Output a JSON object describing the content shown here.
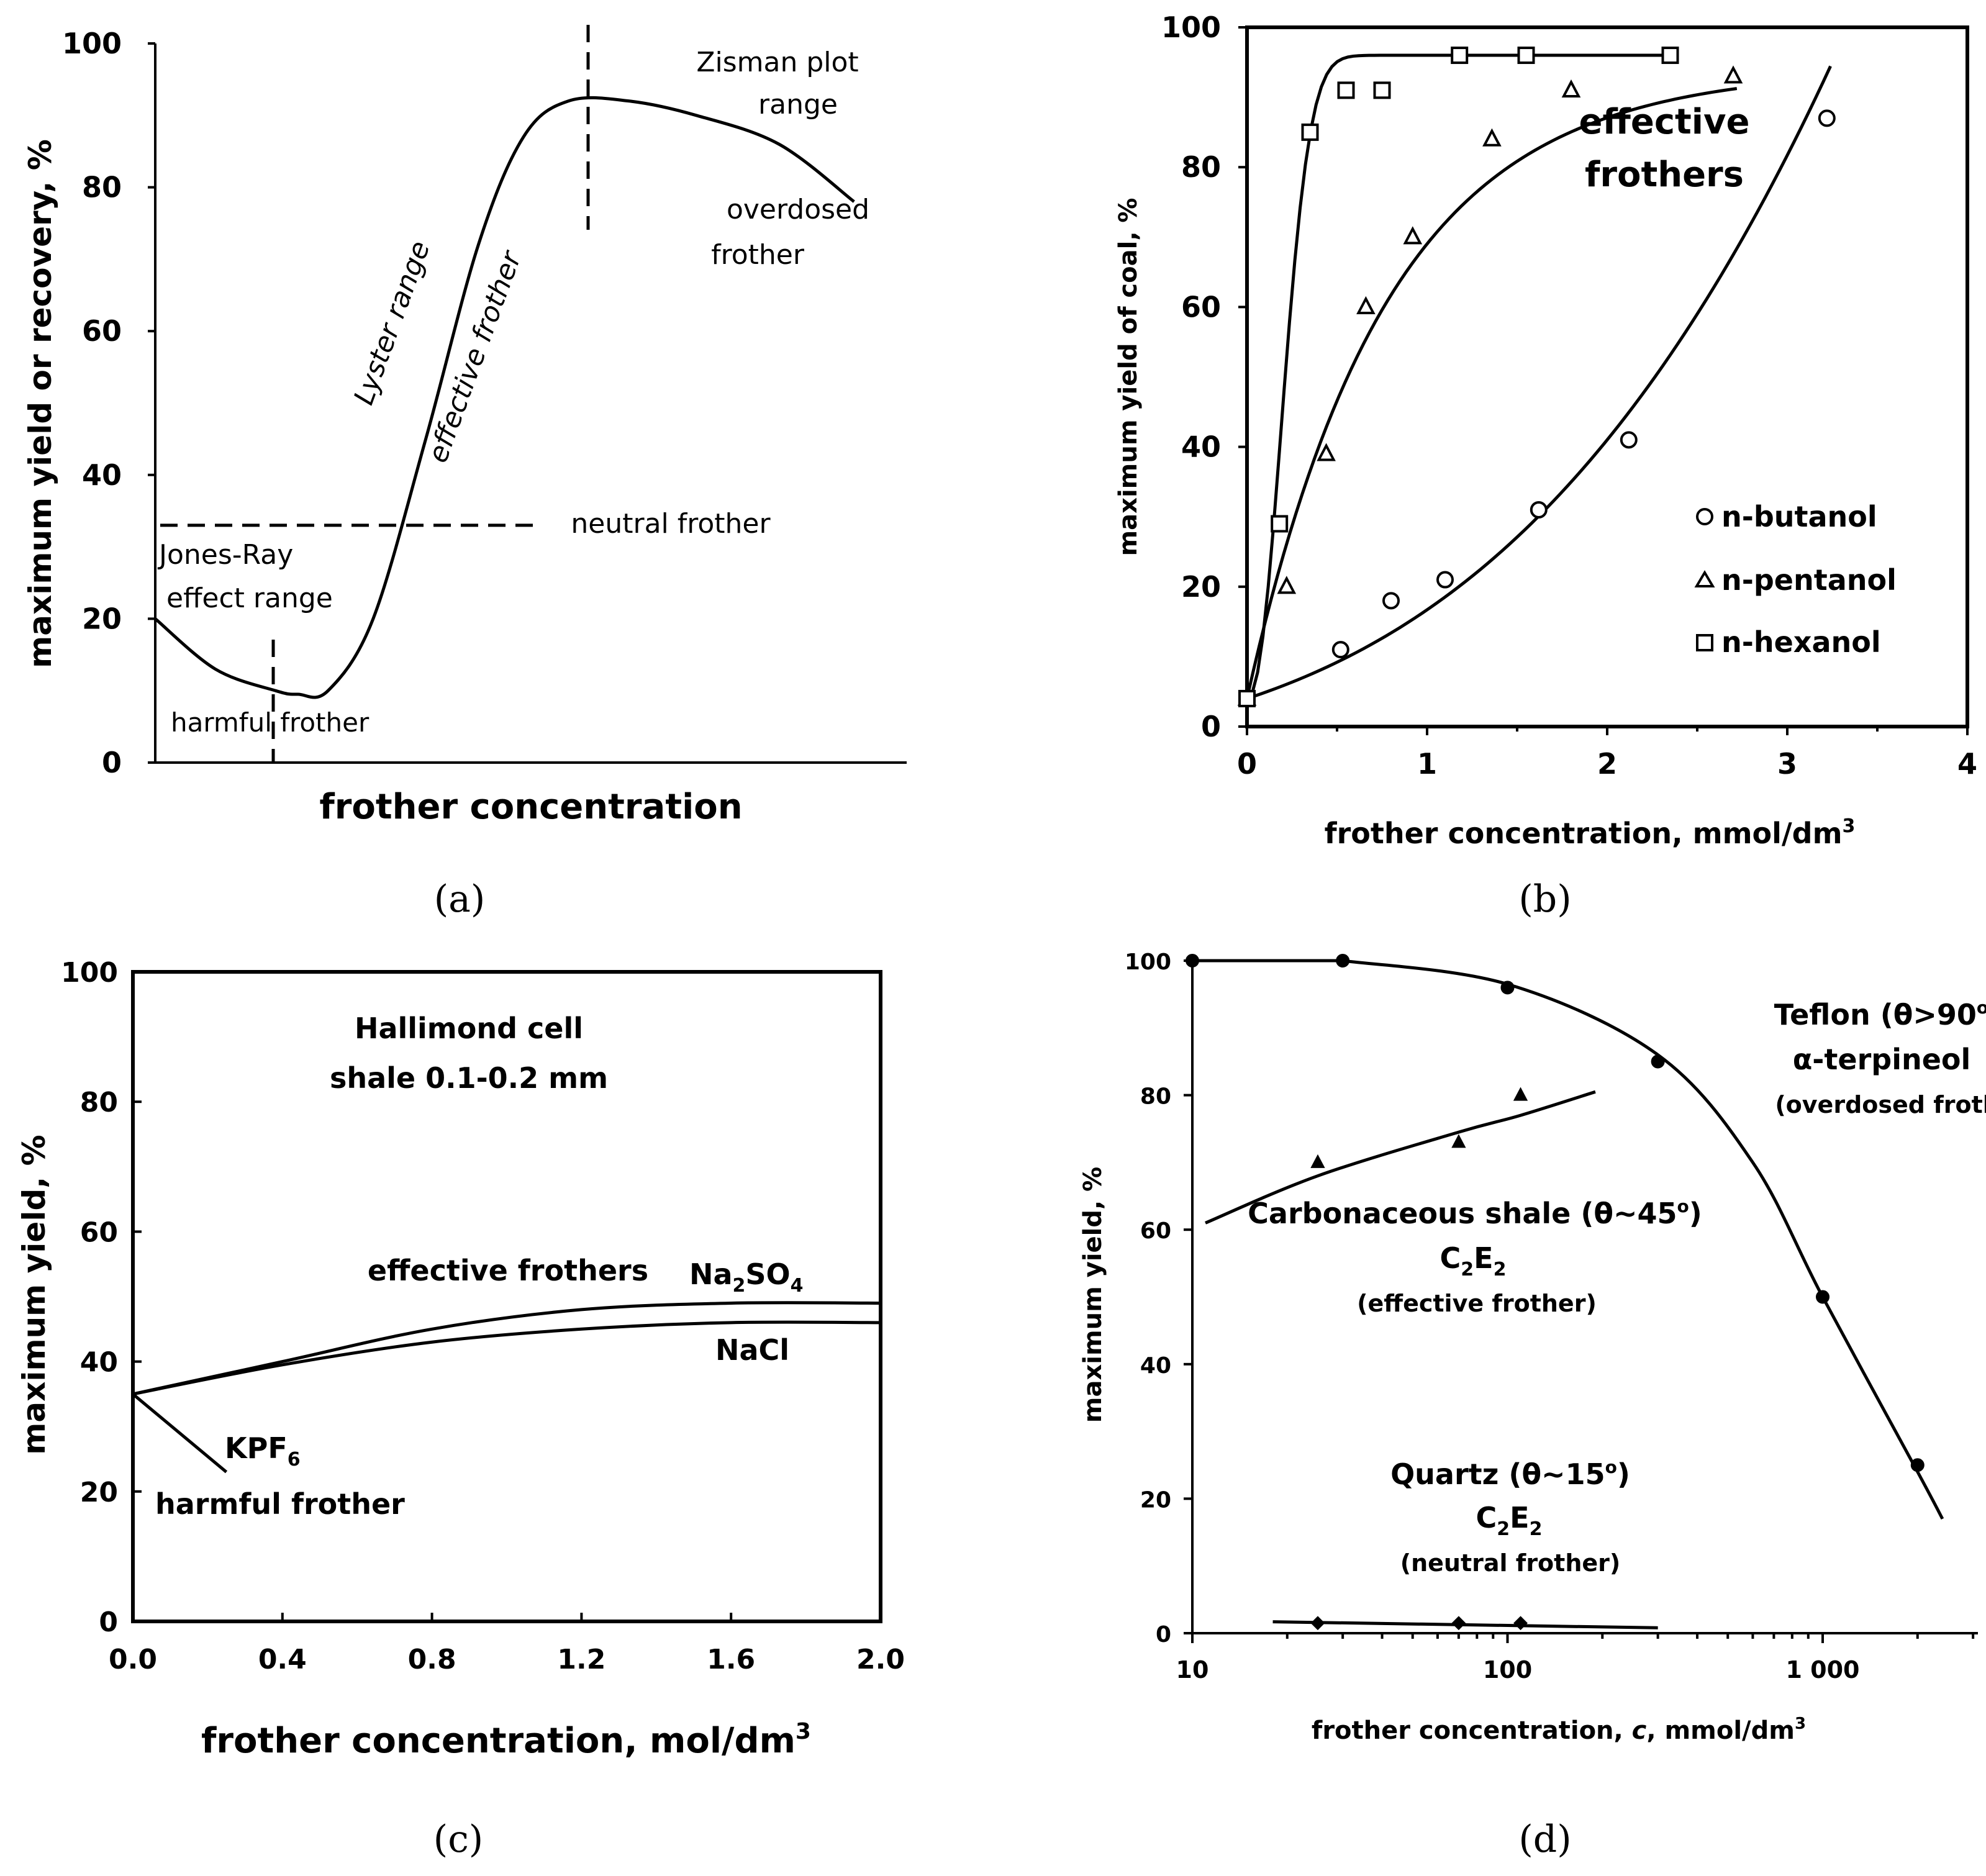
{
  "chart_data": [
    {
      "id": "a",
      "type": "line",
      "panel_label": "(a)",
      "title": "",
      "xlabel": "frother concentration",
      "ylabel": "maximum yield or recovery, %",
      "ylim": [
        0,
        100
      ],
      "yticks": [
        "0",
        "20",
        "40",
        "60",
        "80",
        "100"
      ],
      "annotations": {
        "zisman1": "Zisman plot",
        "zisman2": "range",
        "overdosed1": "overdosed",
        "overdosed2": "frother",
        "lyster": "Lyster  range",
        "effective": "effective frother",
        "neutral": "neutral frother",
        "jonesray1": "Jones-Ray",
        "jonesray2": "effect range",
        "harmful": "harmful frother"
      },
      "curve": {
        "x": [
          0,
          0.08,
          0.16,
          0.19,
          0.23,
          0.29,
          0.36,
          0.43,
          0.49,
          0.55,
          0.63,
          0.72,
          0.83,
          0.93
        ],
        "y": [
          20,
          13,
          10,
          9.5,
          10,
          20,
          45,
          72,
          87,
          92,
          92,
          90,
          86,
          78
        ]
      },
      "neutral_level": 33
    },
    {
      "id": "b",
      "type": "scatter",
      "panel_label": "(b)",
      "xlabel": "frother concentration, mmol/dm",
      "xlabel_sup": "3",
      "ylabel": "maximum yield of coal, %",
      "xlim": [
        0,
        4
      ],
      "ylim": [
        0,
        100
      ],
      "xticks": [
        "0",
        "1",
        "2",
        "3",
        "4"
      ],
      "yticks": [
        "0",
        "20",
        "40",
        "60",
        "80",
        "100"
      ],
      "annotation1": "effective",
      "annotation2": "frothers",
      "series": [
        {
          "name": "n-butanol",
          "marker": "circle",
          "x": [
            0,
            0.52,
            0.8,
            1.1,
            1.62,
            2.12,
            3.22
          ],
          "y": [
            4,
            11,
            18,
            21,
            31,
            41,
            87
          ]
        },
        {
          "name": "n-pentanol",
          "marker": "triangle",
          "x": [
            0,
            0.22,
            0.44,
            0.66,
            0.92,
            1.36,
            1.8,
            2.7
          ],
          "y": [
            4,
            20,
            39,
            60,
            70,
            84,
            91,
            93
          ]
        },
        {
          "name": "n-hexanol",
          "marker": "square",
          "x": [
            0,
            0.18,
            0.35,
            0.55,
            0.75,
            1.18,
            1.55,
            2.35
          ],
          "y": [
            4,
            29,
            85,
            91,
            91,
            96,
            96,
            96
          ]
        }
      ]
    },
    {
      "id": "c",
      "type": "line",
      "panel_label": "(c)",
      "xlabel": "frother concentration, mol/dm",
      "xlabel_sup": "3",
      "ylabel": "maximum yield, %",
      "xlim": [
        0,
        2
      ],
      "ylim": [
        0,
        100
      ],
      "xticks": [
        "0.0",
        "0.4",
        "0.8",
        "1.2",
        "1.6",
        "2.0"
      ],
      "yticks": [
        "0",
        "20",
        "40",
        "60",
        "80",
        "100"
      ],
      "annotation_title1": "Hallimond cell",
      "annotation_title2": "shale 0.1-0.2 mm",
      "annotation_effective": "effective  frothers",
      "annotation_harmful": "harmful frother",
      "series": [
        {
          "name": "Na2SO4",
          "label_main": "Na",
          "label_sub1": "2",
          "label_mid": "SO",
          "label_sub2": "4",
          "x": [
            0,
            0.4,
            0.8,
            1.2,
            1.6,
            2.0
          ],
          "y": [
            35,
            40,
            45,
            48,
            49,
            49
          ]
        },
        {
          "name": "NaCl",
          "label_main": "NaCl",
          "x": [
            0,
            0.4,
            0.8,
            1.2,
            1.6,
            2.0
          ],
          "y": [
            35,
            39.5,
            43,
            45,
            46,
            46
          ]
        },
        {
          "name": "KPF6",
          "label_main": "KPF",
          "label_sub1": "6",
          "x": [
            0,
            0.25
          ],
          "y": [
            35,
            23
          ]
        }
      ]
    },
    {
      "id": "d",
      "type": "scatter",
      "panel_label": "(d)",
      "xscale": "log",
      "xlabel": "frother concentration, ",
      "xlabel_italic": "c",
      "xlabel_tail": ", mmol/dm",
      "xlabel_sup": "3",
      "ylabel": "maximum yield, %",
      "xlim": [
        10,
        3000
      ],
      "ylim": [
        0,
        100
      ],
      "xticks": [
        {
          "value": 10,
          "label": "10"
        },
        {
          "value": 100,
          "label": "100"
        },
        {
          "value": 1000,
          "label": "1 000"
        }
      ],
      "yticks": [
        "0",
        "20",
        "40",
        "60",
        "80",
        "100"
      ],
      "labels": {
        "teflon": "Teflon (θ>90",
        "teflon_sup": "o",
        "teflon_end": ")",
        "terpineol": "α-terpineol",
        "overdosed": "(overdosed frother)",
        "carbon": "Carbonaceous shale (θ~45",
        "carbon_sup": "o",
        "carbon_end": ")",
        "c2e2_a": "C",
        "c2e2_b": "2",
        "c2e2_c": "E",
        "c2e2_d": "2",
        "effective": "(effective frother)",
        "quartz": "Quartz (θ~15",
        "quartz_sup": "o",
        "quartz_end": ")",
        "neutral": "(neutral frother)"
      },
      "series": [
        {
          "name": "Teflon, α-terpineol",
          "marker": "circle",
          "x": [
            10,
            30,
            100,
            300,
            1000,
            2000
          ],
          "y": [
            100,
            100,
            96,
            85,
            50,
            25
          ]
        },
        {
          "name": "Carbonaceous shale, C2E2",
          "marker": "triangle",
          "x": [
            25,
            70,
            110
          ],
          "y": [
            70,
            73,
            80
          ]
        },
        {
          "name": "Quartz, C2E2",
          "marker": "diamond",
          "x": [
            25,
            70,
            110
          ],
          "y": [
            1.5,
            1.5,
            1.5
          ]
        }
      ]
    }
  ]
}
